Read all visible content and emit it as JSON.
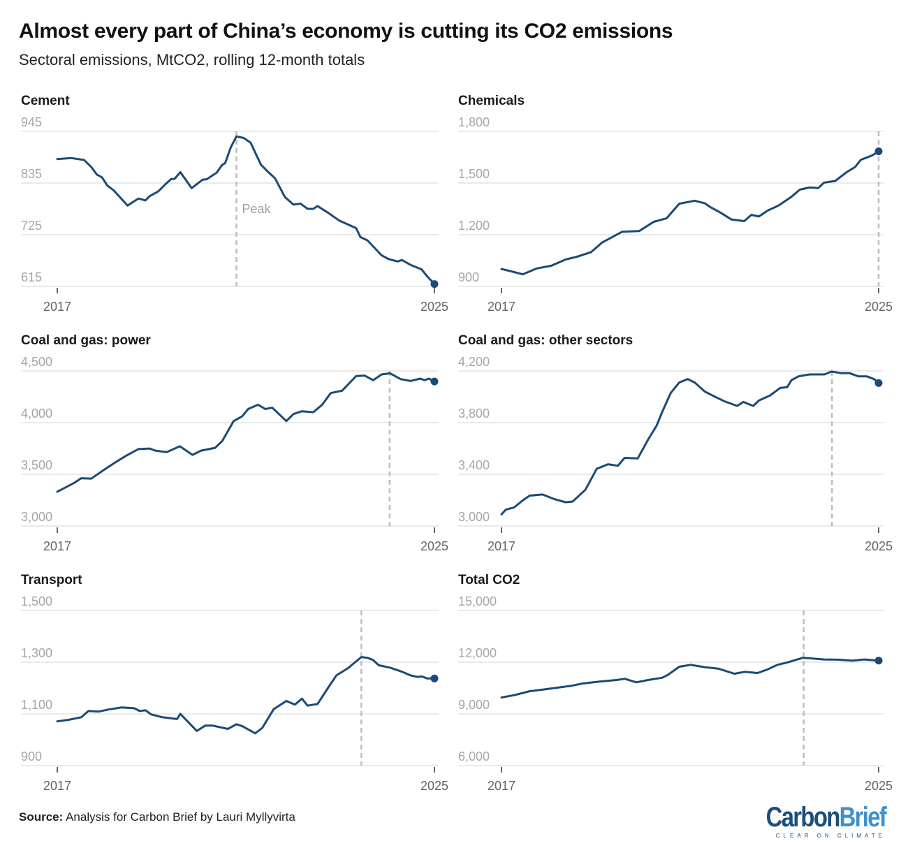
{
  "header": {
    "title": "Almost every part of China’s economy is cutting its CO2 emissions",
    "subtitle": "Sectoral emissions, MtCO2, rolling 12-month totals"
  },
  "footer": {
    "source_label": "Source:",
    "source_text": " Analysis for Carbon Brief by Lauri Myllyvirta",
    "logo_part1": "Carbon",
    "logo_part2": "Brief",
    "logo_tagline": "CLEAR ON CLIMATE"
  },
  "colors": {
    "line": "#1b4a76",
    "grid": "#e3e3e3",
    "tick_label": "#a6a6a6",
    "peak_line": "#bdbdbd"
  },
  "chart_data": [
    {
      "type": "line",
      "title": "Cement",
      "ylim": [
        615,
        945
      ],
      "yticks": [
        "945",
        "835",
        "725",
        "615"
      ],
      "ytick_values": [
        945,
        835,
        725,
        615
      ],
      "xlim": [
        2017,
        2025
      ],
      "xticks": [
        "2017",
        "2025"
      ],
      "peak_x": 2020.8,
      "peak_label": "Peak",
      "x": [
        2017.0,
        2017.3,
        2017.57,
        2017.72,
        2017.84,
        2017.95,
        2018.06,
        2018.2,
        2018.49,
        2018.72,
        2018.87,
        2018.96,
        2019.14,
        2019.29,
        2019.41,
        2019.49,
        2019.61,
        2019.85,
        2020.08,
        2020.17,
        2020.38,
        2020.5,
        2020.56,
        2020.68,
        2020.8,
        2020.95,
        2021.1,
        2021.32,
        2021.47,
        2021.62,
        2021.83,
        2022.01,
        2022.16,
        2022.31,
        2022.43,
        2022.52,
        2022.74,
        2022.98,
        2023.34,
        2023.43,
        2023.58,
        2023.88,
        2024.03,
        2024.22,
        2024.31,
        2024.49,
        2024.73,
        2024.85,
        2025.0
      ],
      "y": [
        886,
        888,
        884,
        869,
        853,
        847,
        830,
        819,
        787,
        802,
        798,
        807,
        817,
        832,
        843,
        844,
        858,
        824,
        842,
        843,
        857,
        874,
        877,
        911,
        934,
        931,
        921,
        874,
        859,
        845,
        805,
        789,
        791,
        780,
        780,
        786,
        772,
        755,
        739,
        720,
        713,
        681,
        673,
        668,
        671,
        661,
        651,
        636,
        620
      ]
    },
    {
      "type": "line",
      "title": "Chemicals",
      "ylim": [
        900,
        1800
      ],
      "yticks": [
        "1,800",
        "1,500",
        "1,200",
        "900"
      ],
      "ytick_values": [
        1800,
        1500,
        1200,
        900
      ],
      "xlim": [
        2017,
        2025
      ],
      "xticks": [
        "2017",
        "2025"
      ],
      "peak_x": 2025.0,
      "x": [
        2017.0,
        2017.21,
        2017.45,
        2017.75,
        2018.06,
        2018.36,
        2018.6,
        2018.9,
        2019.14,
        2019.56,
        2019.92,
        2020.23,
        2020.5,
        2020.77,
        2021.1,
        2021.31,
        2021.43,
        2021.64,
        2021.88,
        2022.15,
        2022.3,
        2022.46,
        2022.64,
        2022.88,
        2023.15,
        2023.33,
        2023.54,
        2023.72,
        2023.84,
        2024.08,
        2024.32,
        2024.5,
        2024.62,
        2024.87,
        2025.0
      ],
      "y": [
        1001,
        987,
        970,
        1004,
        1020,
        1056,
        1072,
        1099,
        1156,
        1217,
        1221,
        1275,
        1295,
        1380,
        1397,
        1383,
        1360,
        1329,
        1288,
        1279,
        1315,
        1306,
        1339,
        1370,
        1420,
        1462,
        1474,
        1471,
        1502,
        1512,
        1563,
        1593,
        1634,
        1661,
        1684
      ]
    },
    {
      "type": "line",
      "title": "Coal and gas: power",
      "ylim": [
        3000,
        4500
      ],
      "yticks": [
        "4,500",
        "4,000",
        "3,500",
        "3,000"
      ],
      "ytick_values": [
        4500,
        4000,
        3500,
        3000
      ],
      "xlim": [
        2017,
        2025
      ],
      "xticks": [
        "2017",
        "2025"
      ],
      "peak_x": 2024.05,
      "x": [
        2017.0,
        2017.36,
        2017.51,
        2017.72,
        2018.0,
        2018.21,
        2018.45,
        2018.72,
        2018.96,
        2019.08,
        2019.32,
        2019.6,
        2019.87,
        2020.05,
        2020.35,
        2020.5,
        2020.74,
        2020.92,
        2021.05,
        2021.26,
        2021.41,
        2021.56,
        2021.86,
        2022.01,
        2022.19,
        2022.43,
        2022.62,
        2022.8,
        2023.04,
        2023.34,
        2023.52,
        2023.7,
        2023.88,
        2024.06,
        2024.28,
        2024.49,
        2024.7,
        2024.79,
        2024.88,
        2025.0
      ],
      "y": [
        3332,
        3417,
        3462,
        3458,
        3546,
        3609,
        3677,
        3744,
        3749,
        3729,
        3715,
        3771,
        3688,
        3729,
        3756,
        3823,
        4015,
        4060,
        4132,
        4173,
        4132,
        4144,
        4015,
        4083,
        4110,
        4101,
        4173,
        4286,
        4308,
        4450,
        4455,
        4410,
        4466,
        4477,
        4421,
        4403,
        4426,
        4410,
        4426,
        4398
      ]
    },
    {
      "type": "line",
      "title": "Coal and gas: other sectors",
      "ylim": [
        3000,
        4200
      ],
      "yticks": [
        "4,200",
        "3,800",
        "3,400",
        "3,000"
      ],
      "ytick_values": [
        4200,
        3800,
        3400,
        3000
      ],
      "xlim": [
        2017,
        2025
      ],
      "xticks": [
        "2017",
        "2025"
      ],
      "peak_x": 2024.01,
      "x": [
        2017.0,
        2017.09,
        2017.27,
        2017.45,
        2017.6,
        2017.87,
        2018.12,
        2018.36,
        2018.51,
        2018.78,
        2019.02,
        2019.26,
        2019.47,
        2019.61,
        2019.89,
        2020.11,
        2020.29,
        2020.41,
        2020.59,
        2020.77,
        2020.95,
        2021.1,
        2021.31,
        2021.55,
        2021.73,
        2022.0,
        2022.13,
        2022.34,
        2022.46,
        2022.7,
        2022.91,
        2023.06,
        2023.15,
        2023.3,
        2023.54,
        2023.85,
        2024.0,
        2024.21,
        2024.39,
        2024.57,
        2024.75,
        2024.9,
        2025.0
      ],
      "y": [
        3090,
        3126,
        3144,
        3198,
        3235,
        3244,
        3208,
        3184,
        3189,
        3280,
        3442,
        3478,
        3466,
        3527,
        3523,
        3668,
        3776,
        3884,
        4029,
        4110,
        4137,
        4110,
        4041,
        3996,
        3965,
        3929,
        3960,
        3929,
        3971,
        4011,
        4068,
        4074,
        4128,
        4158,
        4173,
        4173,
        4195,
        4182,
        4182,
        4158,
        4158,
        4137,
        4106
      ]
    },
    {
      "type": "line",
      "title": "Transport",
      "ylim": [
        900,
        1500
      ],
      "yticks": [
        "1,500",
        "1,300",
        "1,100",
        "900"
      ],
      "ytick_values": [
        1500,
        1300,
        1100,
        900
      ],
      "xlim": [
        2017,
        2025
      ],
      "xticks": [
        "2017",
        "2025"
      ],
      "peak_x": 2023.45,
      "x": [
        2017.0,
        2017.24,
        2017.51,
        2017.66,
        2017.88,
        2018.09,
        2018.36,
        2018.63,
        2018.75,
        2018.87,
        2018.99,
        2019.23,
        2019.54,
        2019.61,
        2019.96,
        2020.14,
        2020.29,
        2020.62,
        2020.8,
        2020.92,
        2021.2,
        2021.35,
        2021.59,
        2021.86,
        2022.04,
        2022.19,
        2022.31,
        2022.52,
        2022.74,
        2022.92,
        2023.16,
        2023.45,
        2023.58,
        2023.7,
        2023.82,
        2024.06,
        2024.3,
        2024.49,
        2024.64,
        2024.73,
        2024.85,
        2025.0
      ],
      "y": [
        1071,
        1077,
        1087,
        1111,
        1109,
        1117,
        1125,
        1122,
        1111,
        1114,
        1098,
        1087,
        1080,
        1100,
        1034,
        1055,
        1055,
        1042,
        1060,
        1053,
        1025,
        1046,
        1118,
        1150,
        1136,
        1159,
        1132,
        1138,
        1200,
        1249,
        1276,
        1320,
        1317,
        1308,
        1288,
        1279,
        1264,
        1249,
        1243,
        1245,
        1237,
        1237
      ]
    },
    {
      "type": "line",
      "title": "Total CO2",
      "ylim": [
        6000,
        15000
      ],
      "yticks": [
        "15,000",
        "12,000",
        "9,000",
        "6,000"
      ],
      "ytick_values": [
        15000,
        12000,
        9000,
        6000
      ],
      "xlim": [
        2017,
        2025
      ],
      "xticks": [
        "2017",
        "2025"
      ],
      "peak_x": 2023.41,
      "x": [
        2017.0,
        2017.27,
        2017.6,
        2017.93,
        2018.18,
        2018.48,
        2018.72,
        2019.08,
        2019.44,
        2019.62,
        2019.86,
        2020.11,
        2020.41,
        2020.53,
        2020.77,
        2021.01,
        2021.31,
        2021.61,
        2021.94,
        2022.16,
        2022.43,
        2022.64,
        2022.85,
        2023.06,
        2023.39,
        2023.54,
        2023.84,
        2024.14,
        2024.45,
        2024.69,
        2025.0
      ],
      "y": [
        9952,
        10087,
        10317,
        10426,
        10520,
        10628,
        10764,
        10872,
        10967,
        11034,
        10831,
        10967,
        11102,
        11265,
        11738,
        11847,
        11711,
        11617,
        11332,
        11441,
        11373,
        11576,
        11847,
        11982,
        12253,
        12226,
        12158,
        12144,
        12090,
        12158,
        12090
      ]
    }
  ]
}
